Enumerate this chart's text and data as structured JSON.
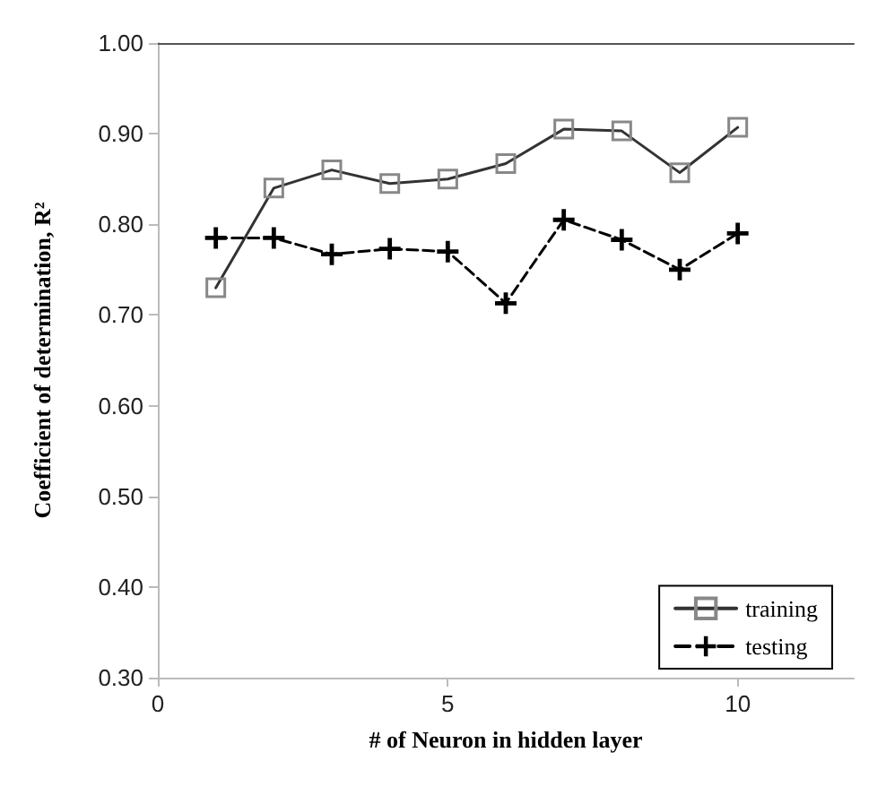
{
  "chart_data": {
    "type": "line",
    "xlabel": "# of Neuron in hidden layer",
    "ylabel": "Coefficient of determination, R²",
    "x": [
      1,
      2,
      3,
      4,
      5,
      6,
      7,
      8,
      9,
      10
    ],
    "series": [
      {
        "name": "training",
        "color": "#333333",
        "marker": "square",
        "line_style": "solid",
        "values": [
          0.73,
          0.84,
          0.86,
          0.845,
          0.85,
          0.867,
          0.905,
          0.903,
          0.857,
          0.907
        ]
      },
      {
        "name": "testing",
        "color": "#000000",
        "marker": "cross",
        "line_style": "dashed",
        "values": [
          0.785,
          0.785,
          0.767,
          0.773,
          0.77,
          0.713,
          0.805,
          0.783,
          0.75,
          0.79
        ]
      }
    ],
    "xlim": [
      0,
      12
    ],
    "xticks": [
      0,
      5,
      10
    ],
    "ylim": [
      0.3,
      1.0
    ],
    "yticks": [
      {
        "value": 0.3,
        "label": "0.30"
      },
      {
        "value": 0.4,
        "label": "0.40"
      },
      {
        "value": 0.5,
        "label": "0.50"
      },
      {
        "value": 0.6,
        "label": "0.60"
      },
      {
        "value": 0.7,
        "label": "0.70"
      },
      {
        "value": 0.8,
        "label": "0.80"
      },
      {
        "value": 0.9,
        "label": "0.90"
      },
      {
        "value": 1.0,
        "label": "1.00"
      }
    ],
    "grid": false,
    "legend": "bottom right"
  }
}
